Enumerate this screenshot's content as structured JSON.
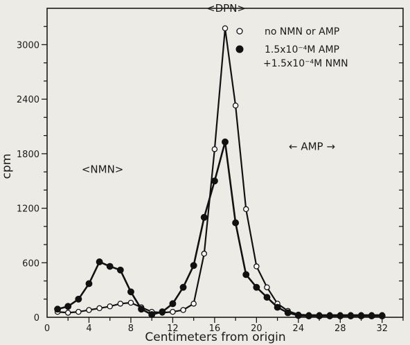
{
  "chart_data": {
    "type": "line",
    "xlabel": "Centimeters from origin",
    "ylabel": "cpm",
    "xlim": [
      0,
      34
    ],
    "ylim": [
      0,
      3400
    ],
    "xticks": [
      0,
      4,
      8,
      12,
      16,
      20,
      24,
      28,
      32
    ],
    "yticks": [
      0,
      600,
      1200,
      1800,
      2400,
      3000
    ],
    "legend_position": "top-right",
    "series": [
      {
        "name": "no NMN or AMP",
        "marker": "open-circle",
        "x": [
          1,
          2,
          3,
          4,
          5,
          6,
          7,
          8,
          9,
          10,
          11,
          12,
          13,
          14,
          15,
          16,
          17,
          18,
          19,
          20,
          21,
          22,
          23,
          24,
          25,
          26,
          27,
          28,
          29,
          30,
          31,
          32
        ],
        "y": [
          60,
          50,
          60,
          80,
          100,
          120,
          150,
          160,
          110,
          60,
          50,
          60,
          80,
          150,
          700,
          1850,
          3180,
          2330,
          1190,
          560,
          330,
          150,
          70,
          30,
          25,
          25,
          25,
          25,
          25,
          25,
          25,
          25
        ]
      },
      {
        "name": "1.5x10⁻⁴M AMP +1.5x10⁻⁴M NMN",
        "marker": "filled-circle",
        "x": [
          1,
          2,
          3,
          4,
          5,
          6,
          7,
          8,
          9,
          10,
          11,
          12,
          13,
          14,
          15,
          16,
          17,
          18,
          19,
          20,
          21,
          22,
          23,
          24,
          25,
          26,
          27,
          28,
          29,
          30,
          31,
          32
        ],
        "y": [
          90,
          120,
          200,
          370,
          610,
          560,
          520,
          280,
          90,
          30,
          60,
          150,
          330,
          570,
          1100,
          1500,
          1930,
          1040,
          470,
          330,
          220,
          110,
          50,
          20,
          15,
          15,
          15,
          15,
          15,
          15,
          15,
          15
        ]
      }
    ],
    "annotations": [
      {
        "text": "<DPN>",
        "x": 17.1,
        "y": 3360
      },
      {
        "text": "<NMN>",
        "x": 5.3,
        "y": 1590
      },
      {
        "text": "← AMP →",
        "x": 25.3,
        "y": 1840
      }
    ],
    "legend": [
      {
        "symbol": "○",
        "lines": [
          "no NMN or AMP"
        ]
      },
      {
        "symbol": "●",
        "lines": [
          "1.5x10⁻⁴M AMP",
          "+1.5x10⁻⁴M NMN"
        ]
      }
    ]
  }
}
